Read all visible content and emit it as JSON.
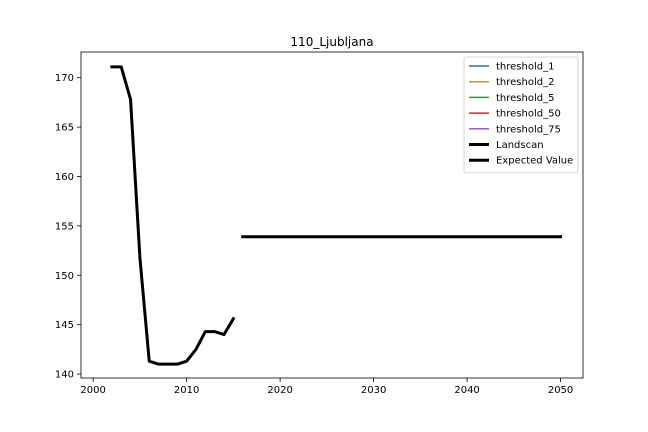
{
  "chart_data": {
    "type": "line",
    "title": "110_Ljubljana",
    "xlabel": "",
    "ylabel": "",
    "xlim": [
      1998.7,
      2052.4
    ],
    "ylim": [
      139.6,
      172.6
    ],
    "x_ticks": [
      2000,
      2010,
      2020,
      2030,
      2040,
      2050
    ],
    "y_ticks": [
      140,
      145,
      150,
      155,
      160,
      165,
      170
    ],
    "grid": false,
    "legend_position": "top-right",
    "series": [
      {
        "name": "threshold_1",
        "color": "#1f77b4",
        "linewidth": 1.5,
        "x": [],
        "y": []
      },
      {
        "name": "threshold_2",
        "color": "#ff7f0e",
        "linewidth": 1.5,
        "x": [],
        "y": []
      },
      {
        "name": "threshold_5",
        "color": "#2ca02c",
        "linewidth": 1.5,
        "x": [],
        "y": []
      },
      {
        "name": "threshold_50",
        "color": "#d62728",
        "linewidth": 1.5,
        "x": [],
        "y": []
      },
      {
        "name": "threshold_75",
        "color": "#9467bd",
        "linewidth": 1.5,
        "x": [],
        "y": []
      },
      {
        "name": "Landscan",
        "color": "#000000",
        "linewidth": 3,
        "x": [
          2002,
          2003,
          2004,
          2005,
          2006,
          2007,
          2008,
          2009,
          2010,
          2011,
          2012,
          2013,
          2014,
          2015
        ],
        "y": [
          171.1,
          171.1,
          167.8,
          151.8,
          141.3,
          141.0,
          141.0,
          141.0,
          141.3,
          142.5,
          144.3,
          144.3,
          144.0,
          145.6
        ]
      },
      {
        "name": "Expected Value",
        "color": "#000000",
        "linewidth": 3,
        "x": [
          2016,
          2050
        ],
        "y": [
          153.9,
          153.9
        ]
      }
    ]
  }
}
